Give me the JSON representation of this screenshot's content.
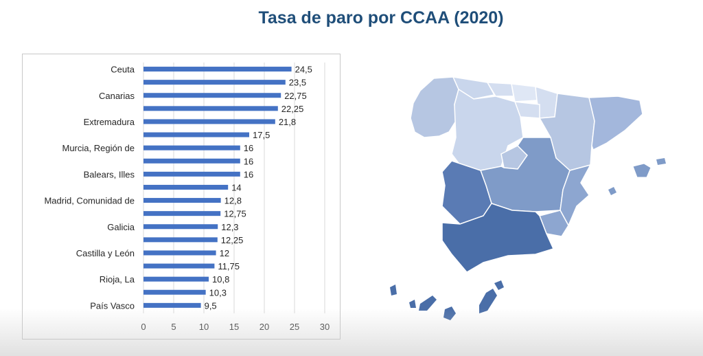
{
  "title": "Tasa de paro por CCAA (2020)",
  "colors": {
    "bar": "#4472c4",
    "title": "#1f4e79",
    "map_dark": "#4a6ea8",
    "map_medium": "#7f9bc8",
    "map_light": "#b6c6e2",
    "map_lightest": "#d4def0"
  },
  "chart_data": {
    "type": "bar",
    "orientation": "horizontal",
    "title": "",
    "xlim": [
      0,
      30
    ],
    "xticks": [
      0,
      5,
      10,
      15,
      20,
      25,
      30
    ],
    "grid": true,
    "legend": "none",
    "labeled_categories": [
      "Ceuta",
      "Canarias",
      "Extremadura",
      "Murcia, Región de",
      "Balears, Illes",
      "Madrid, Comunidad de",
      "Galicia",
      "Castilla y León",
      "Rioja, La",
      "País Vasco"
    ],
    "rows": [
      {
        "label": "Ceuta",
        "value": 24.5,
        "value_label": "24,5"
      },
      {
        "label": "",
        "value": 23.5,
        "value_label": "23,5"
      },
      {
        "label": "Canarias",
        "value": 22.75,
        "value_label": "22,75"
      },
      {
        "label": "",
        "value": 22.25,
        "value_label": "22,25"
      },
      {
        "label": "Extremadura",
        "value": 21.8,
        "value_label": "21,8"
      },
      {
        "label": "",
        "value": 17.5,
        "value_label": "17,5"
      },
      {
        "label": "Murcia, Región de",
        "value": 16,
        "value_label": "16"
      },
      {
        "label": "",
        "value": 16,
        "value_label": "16"
      },
      {
        "label": "Balears, Illes",
        "value": 16,
        "value_label": "16"
      },
      {
        "label": "",
        "value": 14,
        "value_label": "14"
      },
      {
        "label": "Madrid, Comunidad de",
        "value": 12.8,
        "value_label": "12,8"
      },
      {
        "label": "",
        "value": 12.75,
        "value_label": "12,75"
      },
      {
        "label": "Galicia",
        "value": 12.3,
        "value_label": "12,3"
      },
      {
        "label": "",
        "value": 12.25,
        "value_label": "12,25"
      },
      {
        "label": "Castilla y León",
        "value": 12,
        "value_label": "12"
      },
      {
        "label": "",
        "value": 11.75,
        "value_label": "11,75"
      },
      {
        "label": "Rioja, La",
        "value": 10.8,
        "value_label": "10,8"
      },
      {
        "label": "",
        "value": 10.3,
        "value_label": "10,3"
      },
      {
        "label": "País Vasco",
        "value": 9.5,
        "value_label": "9,5"
      }
    ]
  }
}
